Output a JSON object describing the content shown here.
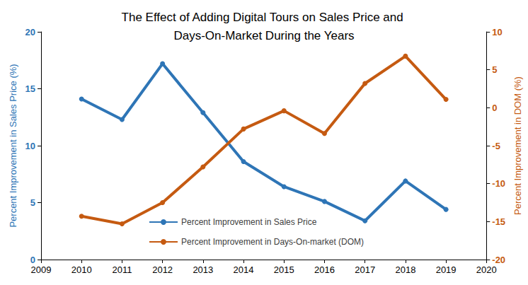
{
  "chart_data": {
    "type": "line",
    "title": "The Effect of Adding Digital Tours on Sales Price and Days-On-Market During the Years",
    "x": [
      2010,
      2011,
      2012,
      2013,
      2014,
      2015,
      2016,
      2017,
      2018,
      2019
    ],
    "xlim": [
      2009,
      2020
    ],
    "xticks": [
      2009,
      2010,
      2011,
      2012,
      2013,
      2014,
      2015,
      2016,
      2017,
      2018,
      2019,
      2020
    ],
    "ylabel": "Percent Improvement in Sales Price (%)",
    "ylim": [
      0,
      20
    ],
    "yticks": [
      0,
      5,
      10,
      15,
      20
    ],
    "y2label": "Percent Improvement in DOM (%)",
    "y2lim": [
      -20,
      10
    ],
    "y2ticks": [
      -20,
      -15,
      -10,
      -5,
      0,
      5,
      10
    ],
    "grid": false,
    "legend": "bottom",
    "series": [
      {
        "name": "Percent Improvement in Sales Price",
        "color": "#2e75b6",
        "marker": "circle",
        "line_style": "solid",
        "values": [
          14.1,
          12.3,
          17.2,
          12.9,
          8.6,
          6.4,
          5.1,
          3.4,
          6.9,
          4.4
        ]
      },
      {
        "name": "Percent Improvement in Days-On-market (DOM)",
        "color": "#c55a11",
        "marker": "circle",
        "line_style": "solid",
        "axis": "y2",
        "values": [
          -14.3,
          -15.3,
          -12.5,
          -7.8,
          -2.8,
          -0.4,
          -3.4,
          3.2,
          6.8,
          1.1
        ]
      }
    ]
  }
}
